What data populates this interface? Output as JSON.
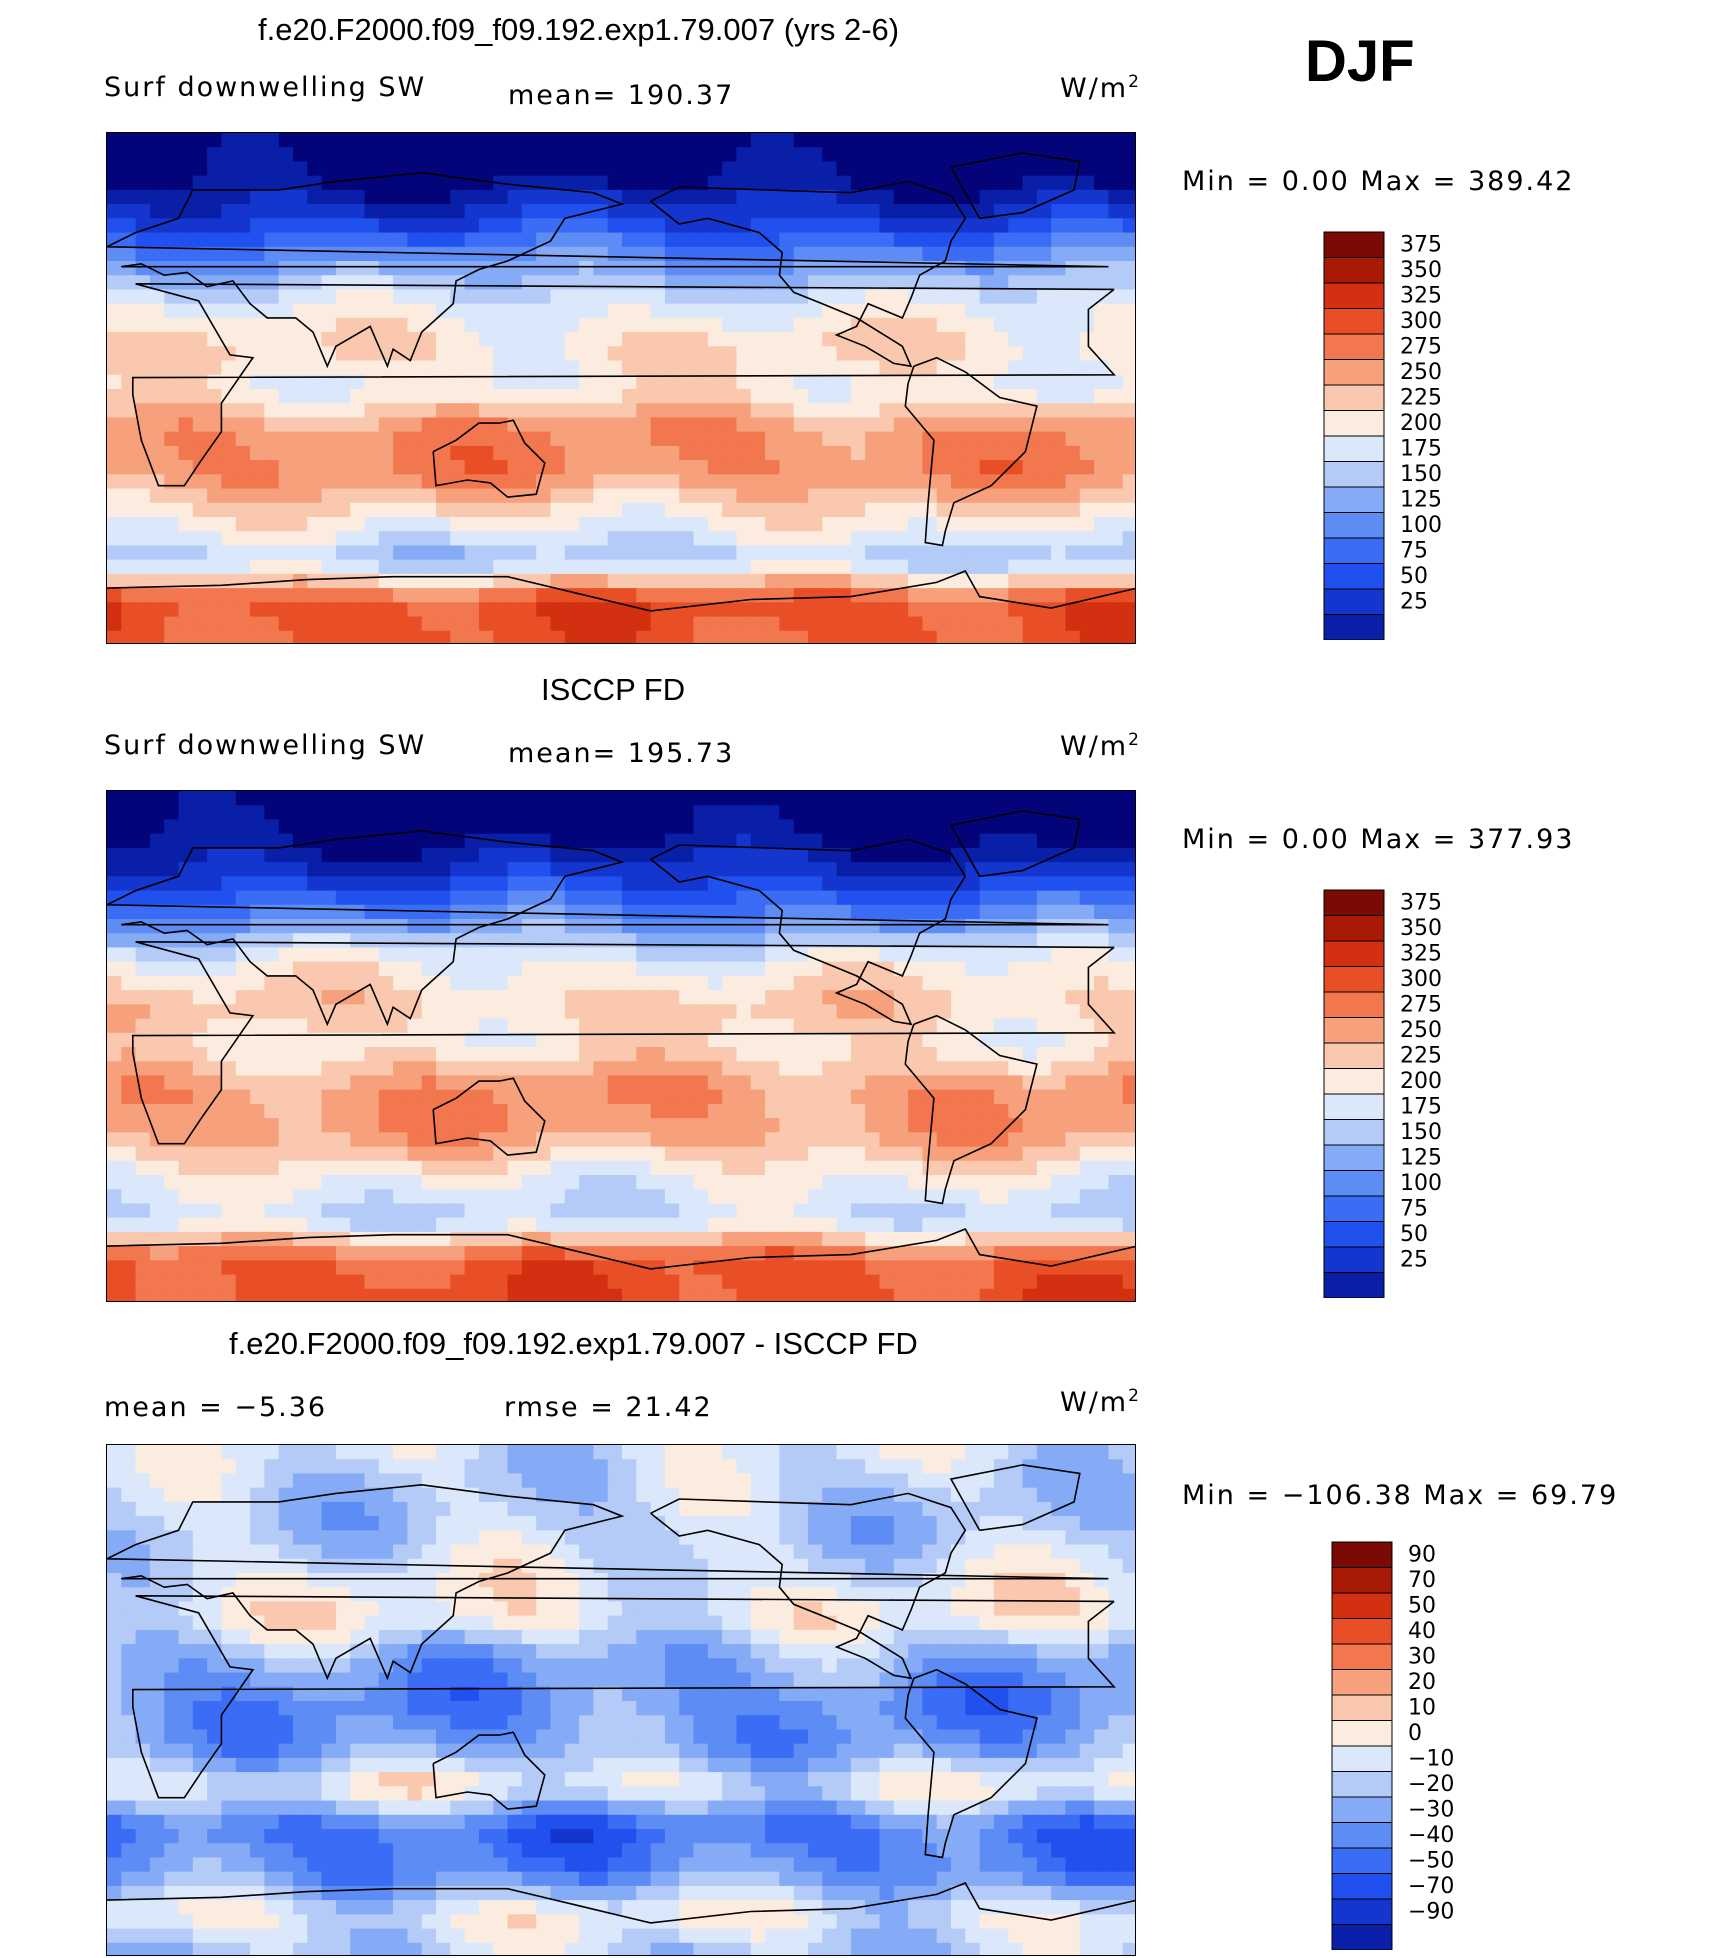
{
  "season": "DJF",
  "panels": [
    {
      "id": "model",
      "title": "f.e20.F2000.f09_f09.192.exp1.79.007 (yrs 2-6)",
      "left_label": "Surf downwelling SW",
      "center_label": "mean= 190.37",
      "units_base": "W/m",
      "units_exp": "2",
      "minmax": "Min =    0.00 Max = 389.42"
    },
    {
      "id": "obs",
      "title": "ISCCP FD",
      "left_label": "Surf downwelling SW",
      "center_label": "mean= 195.73",
      "units_base": "W/m",
      "units_exp": "2",
      "minmax": "Min =    0.00 Max = 377.93"
    },
    {
      "id": "diff",
      "title": "f.e20.F2000.f09_f09.192.exp1.79.007 - ISCCP FD",
      "left_label": "mean =   −5.36",
      "center_label": "rmse =   21.42",
      "units_base": "W/m",
      "units_exp": "2",
      "minmax": "Min = −106.38 Max =   69.79"
    }
  ],
  "chart_data": [
    {
      "type": "heatmap",
      "title": "f.e20.F2000.f09_f09.192.exp1.79.007 (yrs 2-6)",
      "variable": "Surf downwelling SW",
      "units": "W/m2",
      "mean": 190.37,
      "min": 0.0,
      "max": 389.42,
      "x_range_lon": [
        0,
        360
      ],
      "y_range_lat": [
        -90,
        90
      ],
      "zonal_profile_approx": {
        "lat": [
          90,
          75,
          60,
          45,
          30,
          15,
          0,
          -15,
          -30,
          -45,
          -60,
          -75,
          -90
        ],
        "value": [
          0,
          15,
          70,
          145,
          215,
          250,
          230,
          300,
          300,
          240,
          185,
          340,
          330
        ]
      },
      "colorbar_levels": [
        25,
        50,
        75,
        100,
        125,
        150,
        175,
        200,
        225,
        250,
        275,
        300,
        325,
        350,
        375
      ],
      "colorbar_colors": [
        "#04047a",
        "#0a1fa8",
        "#1436cf",
        "#2050ee",
        "#3a6cf6",
        "#5d8cf4",
        "#86abf6",
        "#b4cbf8",
        "#dbe8fb",
        "#fbecdf",
        "#f9c8ae",
        "#f6a07c",
        "#f2774e",
        "#e94f26",
        "#d23010",
        "#a81a05",
        "#7a0a03"
      ]
    },
    {
      "type": "heatmap",
      "title": "ISCCP FD",
      "variable": "Surf downwelling SW",
      "units": "W/m2",
      "mean": 195.73,
      "min": 0.0,
      "max": 377.93,
      "x_range_lon": [
        0,
        360
      ],
      "y_range_lat": [
        -90,
        90
      ],
      "zonal_profile_approx": {
        "lat": [
          90,
          75,
          60,
          45,
          30,
          15,
          0,
          -15,
          -30,
          -45,
          -60,
          -75,
          -90
        ],
        "value": [
          0,
          15,
          65,
          140,
          225,
          260,
          240,
          295,
          290,
          230,
          195,
          330,
          340
        ]
      },
      "colorbar_levels": [
        25,
        50,
        75,
        100,
        125,
        150,
        175,
        200,
        225,
        250,
        275,
        300,
        325,
        350,
        375
      ],
      "colorbar_colors": [
        "#04047a",
        "#0a1fa8",
        "#1436cf",
        "#2050ee",
        "#3a6cf6",
        "#5d8cf4",
        "#86abf6",
        "#b4cbf8",
        "#dbe8fb",
        "#fbecdf",
        "#f9c8ae",
        "#f6a07c",
        "#f2774e",
        "#e94f26",
        "#d23010",
        "#a81a05",
        "#7a0a03"
      ]
    },
    {
      "type": "heatmap",
      "title": "f.e20.F2000.f09_f09.192.exp1.79.007 - ISCCP FD",
      "variable": "Surf downwelling SW difference",
      "units": "W/m2",
      "mean": -5.36,
      "rmse": 21.42,
      "min": -106.38,
      "max": 69.79,
      "x_range_lon": [
        0,
        360
      ],
      "y_range_lat": [
        -90,
        90
      ],
      "zonal_profile_approx": {
        "lat": [
          90,
          75,
          60,
          45,
          30,
          15,
          0,
          -15,
          -30,
          -45,
          -60,
          -75,
          -90
        ],
        "value": [
          3,
          -3,
          -5,
          5,
          12,
          -15,
          -25,
          -20,
          10,
          -35,
          -25,
          10,
          -5
        ]
      },
      "colorbar_levels": [
        -90,
        -70,
        -50,
        -40,
        -30,
        -20,
        -10,
        0,
        10,
        20,
        30,
        40,
        50,
        70,
        90
      ],
      "colorbar_colors": [
        "#04047a",
        "#0a1fa8",
        "#1436cf",
        "#2050ee",
        "#3a6cf6",
        "#5d8cf4",
        "#86abf6",
        "#b4cbf8",
        "#dbe8fb",
        "#fbecdf",
        "#f9c8ae",
        "#f6a07c",
        "#f2774e",
        "#e94f26",
        "#d23010",
        "#a81a05",
        "#7a0a03"
      ]
    }
  ]
}
